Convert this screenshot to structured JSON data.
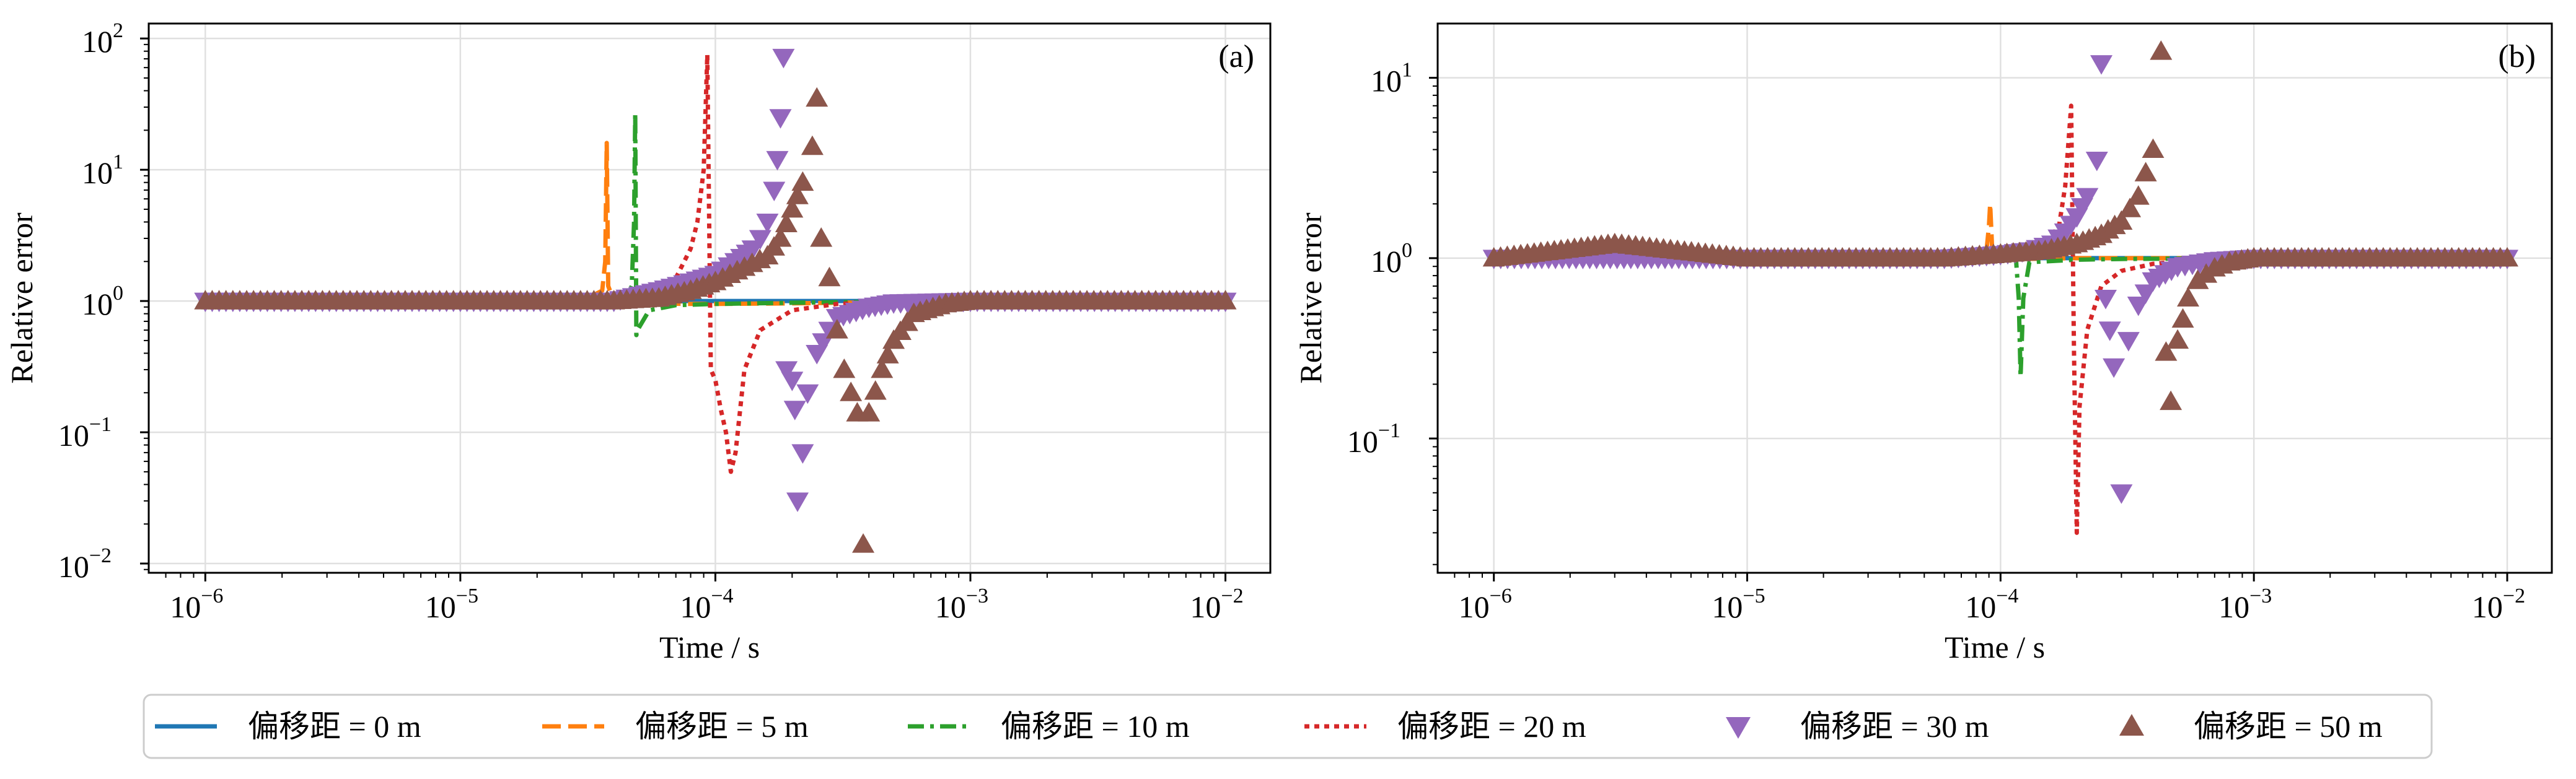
{
  "chart_data": [
    {
      "type": "line",
      "panel_label": "(a)",
      "xlabel": "Time / s",
      "ylabel": "Relative error",
      "xscale": "log",
      "yscale": "log",
      "xlim": [
        6e-07,
        0.015
      ],
      "ylim": [
        0.0085,
        130
      ],
      "xticks": [
        1e-06,
        1e-05,
        0.0001,
        0.001,
        0.01
      ],
      "yticks": [
        0.01,
        0.1,
        1,
        10,
        100
      ],
      "grid": true,
      "series": [
        {
          "name": "偏移距 = 0 m",
          "style": "solid",
          "x": [
            1e-06,
            1e-05,
            0.0001,
            0.001,
            0.01
          ],
          "y": [
            1,
            1,
            1,
            1,
            1
          ]
        },
        {
          "name": "偏移距 = 5 m",
          "style": "dashed",
          "x": [
            1e-06,
            3e-05,
            3.6e-05,
            3.7e-05,
            3.75e-05,
            3.8e-05,
            4e-05,
            5e-05,
            8e-05,
            0.0001,
            0.0002,
            0.0003,
            0.001,
            0.01
          ],
          "y": [
            1,
            1,
            1.2,
            2.0,
            16,
            1.3,
            1.0,
            0.96,
            0.95,
            0.95,
            0.96,
            0.97,
            1.0,
            1.0
          ]
        },
        {
          "name": "偏移距 = 10 m",
          "style": "dashdot",
          "x": [
            1e-06,
            4e-05,
            4.5e-05,
            4.7e-05,
            4.8e-05,
            4.85e-05,
            4.9e-05,
            5e-05,
            5.5e-05,
            7e-05,
            0.0001,
            0.0002,
            0.0003,
            0.001,
            0.01
          ],
          "y": [
            1,
            1,
            1.05,
            1.3,
            4.0,
            27,
            0.55,
            0.62,
            0.85,
            0.93,
            0.95,
            0.97,
            0.98,
            1.0,
            1.0
          ]
        },
        {
          "name": "偏移距 = 20 m",
          "style": "dotted",
          "x": [
            1e-06,
            5e-05,
            7e-05,
            8e-05,
            8.5e-05,
            9e-05,
            9.3e-05,
            9.6e-05,
            0.0001,
            0.000105,
            0.00011,
            0.000115,
            0.00012,
            0.00013,
            0.00015,
            0.0002,
            0.0003,
            0.0005,
            0.001,
            0.01
          ],
          "y": [
            1,
            1.05,
            1.5,
            2.5,
            4.0,
            10,
            75,
            0.3,
            0.25,
            0.15,
            0.1,
            0.05,
            0.07,
            0.3,
            0.6,
            0.85,
            0.95,
            0.98,
            1.0,
            1.0
          ]
        }
      ],
      "marker_series": [
        {
          "name": "偏移距 = 30 m",
          "marker": "triangle-down",
          "x": [
            1e-06,
            1e-05,
            4e-05,
            6e-05,
            8e-05,
            0.0001,
            0.00012,
            0.00014,
            0.00015,
            0.00016,
            0.00017,
            0.000175,
            0.00018,
            0.000185,
            0.00019,
            0.0002,
            0.000205,
            0.00021,
            0.00022,
            0.00023,
            0.00025,
            0.00028,
            0.0003,
            0.0004,
            0.0005,
            0.001,
            0.01
          ],
          "y": [
            1,
            1,
            1,
            1.2,
            1.4,
            1.6,
            2.0,
            2.5,
            3.0,
            4.0,
            7.0,
            12,
            25,
            72,
            0.3,
            0.25,
            0.15,
            0.03,
            0.07,
            0.2,
            0.4,
            0.6,
            0.75,
            0.9,
            0.97,
            1.0,
            1.0
          ]
        },
        {
          "name": "偏移距 = 50 m",
          "marker": "triangle-up",
          "x": [
            1e-06,
            1e-05,
            4e-05,
            6e-05,
            8e-05,
            0.0001,
            0.00013,
            0.00016,
            0.00018,
            0.0002,
            0.00022,
            0.00024,
            0.00025,
            0.00026,
            0.00028,
            0.0003,
            0.00032,
            0.00034,
            0.00036,
            0.00038,
            0.0004,
            0.00045,
            0.0005,
            0.0006,
            0.0008,
            0.001,
            0.005,
            0.01
          ],
          "y": [
            1,
            1,
            1,
            1.05,
            1.2,
            1.4,
            1.8,
            2.2,
            3.0,
            5.0,
            8.0,
            15,
            35,
            3.0,
            1.5,
            0.6,
            0.3,
            0.2,
            0.14,
            0.014,
            0.14,
            0.3,
            0.5,
            0.8,
            0.95,
            1.0,
            1.0,
            1.0
          ]
        }
      ]
    },
    {
      "type": "line",
      "panel_label": "(b)",
      "xlabel": "Time / s",
      "ylabel": "Relative error",
      "xscale": "log",
      "yscale": "log",
      "xlim": [
        6e-07,
        0.015
      ],
      "ylim": [
        0.018,
        20
      ],
      "xticks": [
        1e-06,
        1e-05,
        0.0001,
        0.001,
        0.01
      ],
      "yticks": [
        0.1,
        1,
        10
      ],
      "grid": true,
      "series": [
        {
          "name": "偏移距 = 0 m",
          "style": "solid",
          "x": [
            1e-06,
            1e-05,
            0.0001,
            0.001,
            0.01
          ],
          "y": [
            1,
            1,
            1,
            1,
            1
          ]
        },
        {
          "name": "偏移距 = 5 m",
          "style": "dashed",
          "x": [
            1e-06,
            8e-05,
            8.8e-05,
            9e-05,
            9.1e-05,
            9.3e-05,
            0.0001,
            0.00012,
            0.0002,
            0.001,
            0.01
          ],
          "y": [
            1,
            1,
            1.1,
            1.5,
            2.0,
            1.0,
            0.99,
            0.99,
            1.0,
            1.0,
            1.0
          ]
        },
        {
          "name": "偏移距 = 10 m",
          "style": "dashdot",
          "x": [
            1e-06,
            0.0001,
            0.000115,
            0.000118,
            0.00012,
            0.000123,
            0.00013,
            0.0002,
            0.0003,
            0.001,
            0.01
          ],
          "y": [
            1,
            1,
            1.0,
            0.6,
            0.22,
            0.6,
            0.95,
            0.98,
            0.99,
            1.0,
            1.0
          ]
        },
        {
          "name": "偏移距 = 20 m",
          "style": "dotted",
          "x": [
            1e-06,
            0.0001,
            0.00015,
            0.00017,
            0.00018,
            0.00019,
            0.000195,
            0.0002,
            0.000205,
            0.00022,
            0.00025,
            0.0003,
            0.0004,
            0.0006,
            0.001,
            0.01
          ],
          "y": [
            1,
            1.02,
            1.2,
            1.5,
            2.5,
            7.0,
            0.3,
            0.03,
            0.15,
            0.4,
            0.7,
            0.85,
            0.93,
            0.98,
            1.0,
            1.0
          ]
        }
      ],
      "marker_series": [
        {
          "name": "偏移距 = 30 m",
          "marker": "triangle-down",
          "x": [
            1e-06,
            1e-05,
            6e-05,
            0.0001,
            0.00013,
            0.00016,
            0.00018,
            0.0002,
            0.00022,
            0.00024,
            0.00025,
            0.00026,
            0.00027,
            0.00028,
            0.0003,
            0.00032,
            0.00035,
            0.0004,
            0.0005,
            0.0007,
            0.001,
            0.01
          ],
          "y": [
            1,
            1,
            1,
            1.05,
            1.1,
            1.2,
            1.4,
            1.7,
            2.2,
            3.5,
            12,
            0.6,
            0.4,
            0.25,
            0.05,
            0.35,
            0.55,
            0.75,
            0.9,
            0.97,
            1.0,
            1.0
          ]
        },
        {
          "name": "偏移距 = 50 m",
          "marker": "triangle-up",
          "x": [
            1e-06,
            3e-06,
            1e-05,
            6e-05,
            0.0001,
            0.00015,
            0.0002,
            0.00025,
            0.0003,
            0.00035,
            0.0004,
            0.00043,
            0.00045,
            0.00047,
            0.0005,
            0.00055,
            0.0006,
            0.0007,
            0.0008,
            0.001,
            0.005,
            0.01
          ],
          "y": [
            1,
            1.2,
            1,
            1,
            1.05,
            1.1,
            1.2,
            1.35,
            1.6,
            2.2,
            4.0,
            14,
            0.3,
            0.16,
            0.35,
            0.6,
            0.75,
            0.88,
            0.95,
            1.0,
            1.0,
            1.0
          ]
        }
      ]
    }
  ],
  "legend": {
    "placement": "bottom",
    "entries": [
      {
        "label": "偏移距 = 0 m",
        "color": "#1f77b4",
        "style": "solid"
      },
      {
        "label": "偏移距 = 5 m",
        "color": "#ff7f0e",
        "style": "dashed"
      },
      {
        "label": "偏移距 = 10 m",
        "color": "#2ca02c",
        "style": "dashdot"
      },
      {
        "label": "偏移距 = 20 m",
        "color": "#d62728",
        "style": "dotted"
      },
      {
        "label": "偏移距 = 30 m",
        "color": "#9467bd",
        "style": "triangle-down"
      },
      {
        "label": "偏移距 = 50 m",
        "color": "#8c564b",
        "style": "triangle-up"
      }
    ]
  }
}
